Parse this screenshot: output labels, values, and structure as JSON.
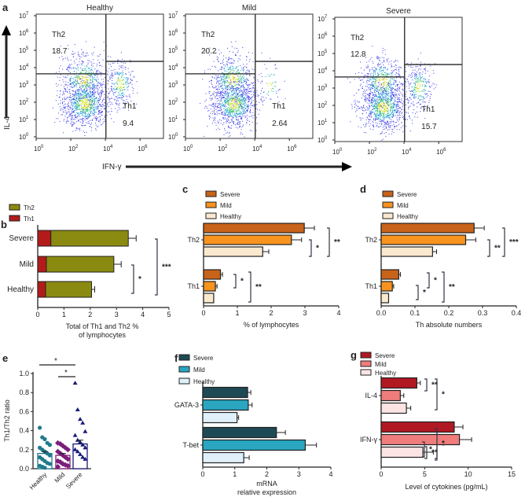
{
  "panel_labels": [
    "a",
    "b",
    "c",
    "d",
    "e",
    "f",
    "g"
  ],
  "colors": {
    "th2_olive": "#8a8a10",
    "th1_red": "#b31b1b",
    "severe_brown": "#c8631a",
    "mild_orange": "#f7931e",
    "healthy_cream": "#fbe9cf",
    "f_severe": "#1e4a55",
    "f_mild": "#2aa6c0",
    "f_healthy": "#dff0fb",
    "g_severe": "#b01822",
    "g_mild": "#f07c7c",
    "g_healthy": "#fde4e4",
    "e_healthy": "#1f7a8c",
    "e_mild": "#7b1e7a",
    "e_severe": "#1a1a7a"
  },
  "chart_data": [
    {
      "id": "a",
      "type": "scatter",
      "subtype": "flow-cytometry",
      "ylabel": "IL-4",
      "xlabel": "IFN-γ",
      "yticks": [
        "10^0",
        "10^1",
        "10^2",
        "10^3",
        "10^4",
        "10^5",
        "10^6",
        "10^7"
      ],
      "xticks": [
        "10^0",
        "10^2",
        "10^4",
        "10^6"
      ],
      "plots": [
        {
          "title": "Healthy",
          "th2_label": "Th2",
          "th2": "18.7",
          "th1_label": "Th1",
          "th1": "9.4"
        },
        {
          "title": "Mild",
          "th2_label": "Th2",
          "th2": "20.2",
          "th1_label": "Th1",
          "th1": "2.64"
        },
        {
          "title": "Severe",
          "th2_label": "Th2",
          "th2": "12.8",
          "th1_label": "Th1",
          "th1": "15.7"
        }
      ]
    },
    {
      "id": "b",
      "type": "bar",
      "orientation": "horizontal",
      "stacked": true,
      "categories": [
        "Severe",
        "Mild",
        "Healthy"
      ],
      "series": [
        {
          "name": "Th1",
          "values": [
            0.5,
            0.33,
            0.3
          ]
        },
        {
          "name": "Th2",
          "values": [
            2.95,
            2.57,
            1.75
          ]
        }
      ],
      "errors": [
        0.3,
        0.28,
        0.12
      ],
      "xlabel": "Total of Th1 and Th2 % of lymphocytes",
      "xlabel_lines": [
        "Total of Th1 and Th2 %",
        "of lymphocytes"
      ],
      "xlim": [
        0,
        5
      ],
      "xticks": [
        "0",
        "1",
        "2",
        "3",
        "4",
        "5"
      ],
      "legend": [
        "Th2",
        "Th1"
      ],
      "significance": [
        {
          "pair": "Mild-Healthy",
          "mark": "*"
        },
        {
          "pair": "Severe-Healthy",
          "mark": "***"
        }
      ]
    },
    {
      "id": "c",
      "type": "bar",
      "orientation": "horizontal",
      "groups": [
        "Th2",
        "Th1"
      ],
      "series": [
        {
          "name": "Severe",
          "values": [
            2.98,
            0.5
          ],
          "errors": [
            0.3,
            0.06
          ]
        },
        {
          "name": "Mild",
          "values": [
            2.6,
            0.35
          ],
          "errors": [
            0.3,
            0.05
          ]
        },
        {
          "name": "Healthy",
          "values": [
            1.75,
            0.3
          ],
          "errors": [
            0.18,
            0
          ]
        }
      ],
      "xlabel": "% of lymphocytes",
      "xlim": [
        0,
        4
      ],
      "xticks": [
        "0",
        "1",
        "2",
        "3",
        "4"
      ],
      "legend": [
        "Severe",
        "Mild",
        "Healthy"
      ],
      "significance": [
        {
          "group": "Th2",
          "marks": [
            "*",
            "**"
          ]
        },
        {
          "group": "Th1",
          "marks": [
            "*",
            "**"
          ]
        }
      ]
    },
    {
      "id": "d",
      "type": "bar",
      "orientation": "horizontal",
      "groups": [
        "Th2",
        "Th1"
      ],
      "series": [
        {
          "name": "Severe",
          "values": [
            0.275,
            0.052
          ],
          "errors": [
            0.03,
            0.005
          ]
        },
        {
          "name": "Mild",
          "values": [
            0.25,
            0.033
          ],
          "errors": [
            0.03,
            0.004
          ]
        },
        {
          "name": "Healthy",
          "values": [
            0.152,
            0.022
          ],
          "errors": [
            0.012,
            0
          ]
        }
      ],
      "xlabel": "Th absolute numbers",
      "xlim": [
        0,
        0.4
      ],
      "xticks": [
        "0.0",
        "0.1",
        "0.2",
        "0.3",
        "0.4"
      ],
      "legend": [
        "Severe",
        "Mild",
        "Healthy"
      ],
      "significance": [
        {
          "group": "Th2",
          "marks": [
            "**",
            "***"
          ]
        },
        {
          "group": "Th1",
          "marks": [
            "*",
            "*",
            "**"
          ]
        }
      ]
    },
    {
      "id": "e",
      "type": "scatter",
      "subtype": "dot-bar",
      "categories": [
        "Healthy",
        "Mild",
        "Severe"
      ],
      "means": [
        0.16,
        0.14,
        0.26
      ],
      "sem": [
        0.02,
        0.02,
        0.04
      ],
      "points": [
        [
          0.43,
          0.33,
          0.31,
          0.27,
          0.25,
          0.22,
          0.2,
          0.18,
          0.16,
          0.14,
          0.12,
          0.1,
          0.08,
          0.06,
          0.05,
          0.03,
          0.02,
          0.01
        ],
        [
          0.27,
          0.26,
          0.24,
          0.22,
          0.2,
          0.18,
          0.16,
          0.14,
          0.12,
          0.1,
          0.08,
          0.07,
          0.05,
          0.04,
          0.03,
          0.02
        ],
        [
          0.9,
          0.62,
          0.52,
          0.48,
          0.39,
          0.35,
          0.3,
          0.28,
          0.25,
          0.22,
          0.2,
          0.18,
          0.15,
          0.12,
          0.1
        ]
      ],
      "ylabel": "Th1/Th2 ratio",
      "ylim": [
        0,
        1
      ],
      "yticks": [
        "0.0",
        "0.2",
        "0.4",
        "0.6",
        "0.8",
        "1.0"
      ],
      "significance": [
        {
          "pair": "Healthy-Severe",
          "mark": "*"
        },
        {
          "pair": "Mild-Severe",
          "mark": "*"
        }
      ]
    },
    {
      "id": "f",
      "type": "bar",
      "orientation": "horizontal",
      "groups": [
        "GATA-3",
        "T-bet"
      ],
      "series": [
        {
          "name": "Severe",
          "values": [
            1.4,
            2.3
          ],
          "errors": [
            0.1,
            0.28
          ]
        },
        {
          "name": "Mild",
          "values": [
            1.42,
            3.2
          ],
          "errors": [
            0.12,
            0.35
          ]
        },
        {
          "name": "Healthy",
          "values": [
            1.07,
            1.28
          ],
          "errors": [
            0.05,
            0.17
          ]
        }
      ],
      "xlabel": "mRNA relative expression",
      "xlabel_lines": [
        "mRNA",
        "relative expression"
      ],
      "xlim": [
        0,
        4
      ],
      "xticks": [
        "0",
        "1",
        "2",
        "3",
        "4"
      ],
      "legend": [
        "Severe",
        "Mild",
        "Healthy"
      ],
      "significance": [
        {
          "group": "T-bet",
          "marks": [
            "**",
            "*"
          ]
        }
      ]
    },
    {
      "id": "g",
      "type": "bar",
      "orientation": "horizontal",
      "groups": [
        "IL-4",
        "IFN-γ"
      ],
      "series": [
        {
          "name": "Severe",
          "values": [
            4.1,
            8.4
          ],
          "errors": [
            0.4,
            1.0
          ]
        },
        {
          "name": "Mild",
          "values": [
            2.2,
            9.0
          ],
          "errors": [
            0.4,
            1.4
          ]
        },
        {
          "name": "Healthy",
          "values": [
            2.9,
            4.8
          ],
          "errors": [
            0.5,
            1.2
          ]
        }
      ],
      "xlabel": "Level of cytokines (pg/mL)",
      "xlim": [
        0,
        15
      ],
      "xticks": [
        "0",
        "5",
        "10",
        "15"
      ],
      "legend": [
        "Severe",
        "Mild",
        "Healthy"
      ],
      "significance": [
        {
          "group": "IL-4",
          "marks": [
            "**",
            "*"
          ]
        },
        {
          "group": "IFN-γ",
          "marks": [
            "*",
            "*"
          ]
        }
      ]
    }
  ]
}
